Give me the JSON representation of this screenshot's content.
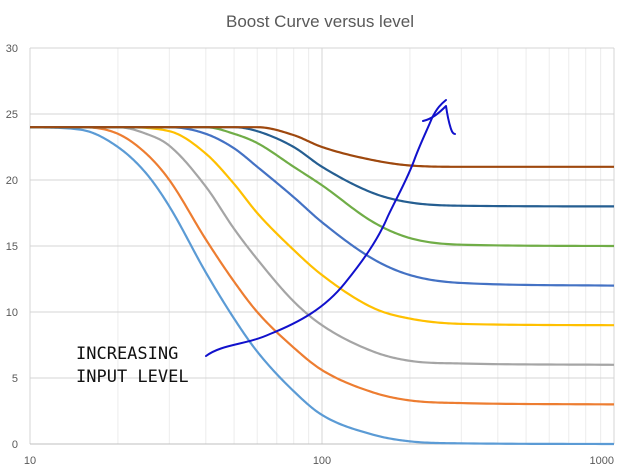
{
  "chart_data": {
    "type": "line",
    "title": "Boost Curve versus level",
    "xlabel": "",
    "ylabel": "",
    "xscale": "log",
    "xlim": [
      10,
      1000
    ],
    "ylim": [
      0,
      30
    ],
    "x_tick_labels": [
      "10",
      "100",
      "1000"
    ],
    "y_tick_labels": [
      "0",
      "5",
      "10",
      "15",
      "20",
      "25",
      "30"
    ],
    "grid": true,
    "legend": "none",
    "series": [
      {
        "color": "#5B9BD5",
        "points": [
          [
            10,
            24.0
          ],
          [
            15,
            23.8
          ],
          [
            20,
            22.5
          ],
          [
            25,
            20.5
          ],
          [
            30,
            18.0
          ],
          [
            40,
            13.0
          ],
          [
            50,
            9.5
          ],
          [
            60,
            7.0
          ],
          [
            80,
            4.0
          ],
          [
            100,
            2.2
          ],
          [
            150,
            0.7
          ],
          [
            200,
            0.2
          ],
          [
            300,
            0.05
          ],
          [
            1000,
            0.0
          ]
        ]
      },
      {
        "color": "#ED7D31",
        "points": [
          [
            10,
            24.0
          ],
          [
            15,
            24.0
          ],
          [
            20,
            23.5
          ],
          [
            25,
            22.0
          ],
          [
            30,
            20.0
          ],
          [
            40,
            15.5
          ],
          [
            50,
            12.3
          ],
          [
            60,
            10.0
          ],
          [
            80,
            7.3
          ],
          [
            100,
            5.6
          ],
          [
            150,
            3.9
          ],
          [
            200,
            3.3
          ],
          [
            300,
            3.1
          ],
          [
            1000,
            3.0
          ]
        ]
      },
      {
        "color": "#A5A5A5",
        "points": [
          [
            10,
            24.0
          ],
          [
            20,
            24.0
          ],
          [
            25,
            23.5
          ],
          [
            30,
            22.6
          ],
          [
            40,
            19.5
          ],
          [
            50,
            16.3
          ],
          [
            60,
            14.0
          ],
          [
            80,
            10.8
          ],
          [
            100,
            9.0
          ],
          [
            150,
            7.0
          ],
          [
            200,
            6.3
          ],
          [
            300,
            6.1
          ],
          [
            1000,
            6.0
          ]
        ]
      },
      {
        "color": "#FFC000",
        "points": [
          [
            10,
            24.0
          ],
          [
            20,
            24.0
          ],
          [
            30,
            23.7
          ],
          [
            40,
            22.0
          ],
          [
            50,
            19.7
          ],
          [
            60,
            17.5
          ],
          [
            80,
            14.7
          ],
          [
            100,
            12.8
          ],
          [
            150,
            10.3
          ],
          [
            200,
            9.5
          ],
          [
            300,
            9.1
          ],
          [
            1000,
            9.0
          ]
        ]
      },
      {
        "color": "#4472C4",
        "points": [
          [
            10,
            24.0
          ],
          [
            30,
            24.0
          ],
          [
            40,
            23.5
          ],
          [
            50,
            22.4
          ],
          [
            60,
            21.0
          ],
          [
            80,
            18.7
          ],
          [
            100,
            16.8
          ],
          [
            150,
            14.0
          ],
          [
            200,
            12.8
          ],
          [
            300,
            12.2
          ],
          [
            1000,
            12.0
          ]
        ]
      },
      {
        "color": "#70AD47",
        "points": [
          [
            10,
            24.0
          ],
          [
            40,
            24.0
          ],
          [
            50,
            23.5
          ],
          [
            60,
            22.8
          ],
          [
            80,
            21.0
          ],
          [
            100,
            19.6
          ],
          [
            150,
            16.8
          ],
          [
            200,
            15.6
          ],
          [
            300,
            15.1
          ],
          [
            1000,
            15.0
          ]
        ]
      },
      {
        "color": "#255E91",
        "points": [
          [
            10,
            24.0
          ],
          [
            50,
            24.0
          ],
          [
            60,
            23.7
          ],
          [
            80,
            22.5
          ],
          [
            100,
            21.0
          ],
          [
            150,
            19.0
          ],
          [
            200,
            18.3
          ],
          [
            300,
            18.05
          ],
          [
            1000,
            18.0
          ]
        ]
      },
      {
        "color": "#9E480E",
        "points": [
          [
            10,
            24.0
          ],
          [
            60,
            24.0
          ],
          [
            80,
            23.4
          ],
          [
            100,
            22.5
          ],
          [
            150,
            21.5
          ],
          [
            200,
            21.1
          ],
          [
            300,
            21.0
          ],
          [
            1000,
            21.0
          ]
        ]
      }
    ],
    "annotation": {
      "text_lines": [
        "INCREASING",
        "INPUT LEVEL"
      ],
      "arrow_color": "#1111CC"
    }
  }
}
